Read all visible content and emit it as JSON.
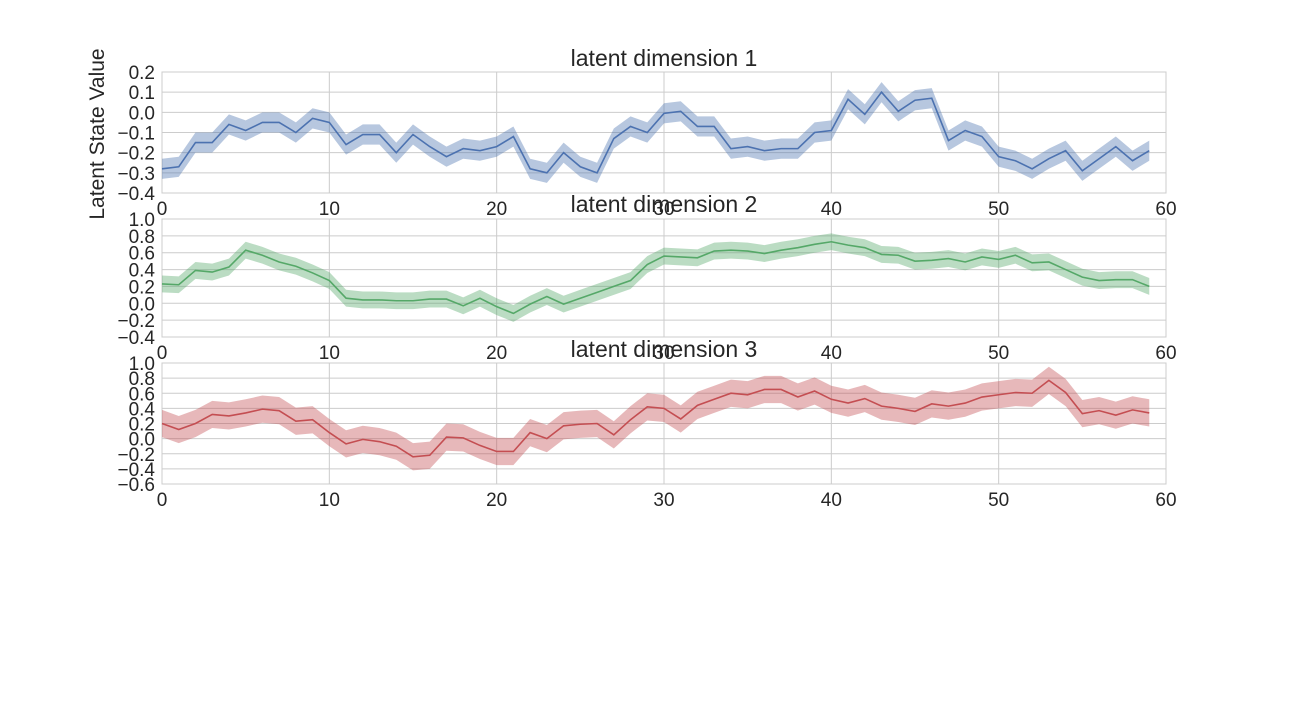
{
  "figure": {
    "ylabel": "Latent State Value"
  },
  "chart_data": [
    {
      "type": "line",
      "title": "latent dimension 1",
      "xlim": [
        0,
        60
      ],
      "ylim": [
        -0.4,
        0.2
      ],
      "xticks": [
        0,
        10,
        20,
        30,
        40,
        50,
        60
      ],
      "xtick_labels": [
        "0",
        "10",
        "20",
        "30",
        "40",
        "50",
        "60"
      ],
      "yticks": [
        0.2,
        0.1,
        0.0,
        -0.1,
        -0.2,
        -0.3,
        -0.4
      ],
      "ytick_labels": [
        "0.2",
        "0.1",
        "0.0",
        "−0.1",
        "−0.2",
        "−0.3",
        "−0.4"
      ],
      "grid": true,
      "color": "#4c72b0",
      "band_halfwidth": 0.05,
      "x": [
        0,
        1,
        2,
        3,
        4,
        5,
        6,
        7,
        8,
        9,
        10,
        11,
        12,
        13,
        14,
        15,
        16,
        17,
        18,
        19,
        20,
        21,
        22,
        23,
        24,
        25,
        26,
        27,
        28,
        29,
        30,
        31,
        32,
        33,
        34,
        35,
        36,
        37,
        38,
        39,
        40,
        41,
        42,
        43,
        44,
        45,
        46,
        47,
        48,
        49,
        50,
        51,
        52,
        53,
        54,
        55,
        56,
        57,
        58,
        59
      ],
      "series": [
        {
          "values": [
            -0.28,
            -0.27,
            -0.15,
            -0.15,
            -0.06,
            -0.09,
            -0.05,
            -0.05,
            -0.1,
            -0.03,
            -0.05,
            -0.16,
            -0.11,
            -0.11,
            -0.2,
            -0.11,
            -0.17,
            -0.22,
            -0.18,
            -0.19,
            -0.17,
            -0.12,
            -0.28,
            -0.3,
            -0.2,
            -0.27,
            -0.3,
            -0.13,
            -0.07,
            -0.1,
            -0.005,
            0.005,
            -0.07,
            -0.07,
            -0.18,
            -0.17,
            -0.19,
            -0.18,
            -0.18,
            -0.1,
            -0.09,
            0.065,
            -0.01,
            0.1,
            0.005,
            0.06,
            0.07,
            -0.14,
            -0.09,
            -0.12,
            -0.22,
            -0.24,
            -0.28,
            -0.23,
            -0.19,
            -0.29,
            -0.23,
            -0.17,
            -0.24,
            -0.19
          ]
        }
      ]
    },
    {
      "type": "line",
      "title": "latent dimension 2",
      "xlim": [
        0,
        60
      ],
      "ylim": [
        -0.4,
        1.0
      ],
      "xticks": [
        0,
        10,
        20,
        30,
        40,
        50,
        60
      ],
      "xtick_labels": [
        "0",
        "10",
        "20",
        "30",
        "40",
        "50",
        "60"
      ],
      "yticks": [
        1.0,
        0.8,
        0.6,
        0.4,
        0.2,
        0.0,
        -0.2,
        -0.4
      ],
      "ytick_labels": [
        "1.0",
        "0.8",
        "0.6",
        "0.4",
        "0.2",
        "0.0",
        "−0.2",
        "−0.4"
      ],
      "grid": true,
      "color": "#55a868",
      "band_halfwidth": 0.1,
      "x": [
        0,
        1,
        2,
        3,
        4,
        5,
        6,
        7,
        8,
        9,
        10,
        11,
        12,
        13,
        14,
        15,
        16,
        17,
        18,
        19,
        20,
        21,
        22,
        23,
        24,
        25,
        26,
        27,
        28,
        29,
        30,
        31,
        32,
        33,
        34,
        35,
        36,
        37,
        38,
        39,
        40,
        41,
        42,
        43,
        44,
        45,
        46,
        47,
        48,
        49,
        50,
        51,
        52,
        53,
        54,
        55,
        56,
        57,
        58,
        59
      ],
      "series": [
        {
          "values": [
            0.23,
            0.22,
            0.39,
            0.37,
            0.43,
            0.63,
            0.57,
            0.49,
            0.44,
            0.36,
            0.27,
            0.06,
            0.04,
            0.04,
            0.03,
            0.03,
            0.05,
            0.05,
            -0.03,
            0.06,
            -0.04,
            -0.12,
            -0.01,
            0.08,
            -0.01,
            0.06,
            0.13,
            0.2,
            0.27,
            0.46,
            0.56,
            0.55,
            0.54,
            0.62,
            0.63,
            0.62,
            0.59,
            0.63,
            0.66,
            0.7,
            0.73,
            0.69,
            0.66,
            0.58,
            0.57,
            0.5,
            0.51,
            0.53,
            0.49,
            0.55,
            0.52,
            0.57,
            0.48,
            0.49,
            0.4,
            0.31,
            0.27,
            0.28,
            0.28,
            0.2
          ]
        }
      ]
    },
    {
      "type": "line",
      "title": "latent dimension 3",
      "xlim": [
        0,
        60
      ],
      "ylim": [
        -0.6,
        1.0
      ],
      "xticks": [
        0,
        10,
        20,
        30,
        40,
        50,
        60
      ],
      "xtick_labels": [
        "0",
        "10",
        "20",
        "30",
        "40",
        "50",
        "60"
      ],
      "yticks": [
        1.0,
        0.8,
        0.6,
        0.4,
        0.2,
        0.0,
        -0.2,
        -0.4,
        -0.6
      ],
      "ytick_labels": [
        "1.0",
        "0.8",
        "0.6",
        "0.4",
        "0.2",
        "0.0",
        "−0.2",
        "−0.4",
        "−0.6"
      ],
      "grid": true,
      "color": "#c44e52",
      "band_halfwidth": 0.18,
      "x": [
        0,
        1,
        2,
        3,
        4,
        5,
        6,
        7,
        8,
        9,
        10,
        11,
        12,
        13,
        14,
        15,
        16,
        17,
        18,
        19,
        20,
        21,
        22,
        23,
        24,
        25,
        26,
        27,
        28,
        29,
        30,
        31,
        32,
        33,
        34,
        35,
        36,
        37,
        38,
        39,
        40,
        41,
        42,
        43,
        44,
        45,
        46,
        47,
        48,
        49,
        50,
        51,
        52,
        53,
        54,
        55,
        56,
        57,
        58,
        59
      ],
      "series": [
        {
          "values": [
            0.2,
            0.12,
            0.2,
            0.32,
            0.3,
            0.34,
            0.39,
            0.37,
            0.23,
            0.25,
            0.08,
            -0.07,
            -0.01,
            -0.04,
            -0.1,
            -0.24,
            -0.22,
            0.02,
            0.01,
            -0.09,
            -0.17,
            -0.17,
            0.08,
            0.0,
            0.17,
            0.19,
            0.2,
            0.05,
            0.25,
            0.42,
            0.4,
            0.26,
            0.44,
            0.52,
            0.6,
            0.58,
            0.65,
            0.65,
            0.55,
            0.63,
            0.52,
            0.47,
            0.53,
            0.43,
            0.4,
            0.36,
            0.46,
            0.43,
            0.47,
            0.55,
            0.58,
            0.61,
            0.6,
            0.77,
            0.61,
            0.33,
            0.37,
            0.31,
            0.38,
            0.34
          ]
        }
      ]
    }
  ]
}
